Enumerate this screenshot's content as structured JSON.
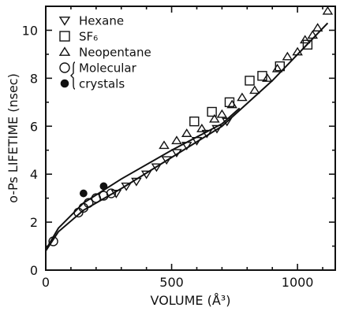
{
  "chart_data": {
    "type": "scatter",
    "xlabel": "VOLUME (Å³)",
    "ylabel": "o-Ps LIFETIME (nsec)",
    "xlim": [
      0,
      1150
    ],
    "ylim": [
      0,
      11
    ],
    "xticks": [
      0,
      500,
      1000
    ],
    "yticks": [
      0,
      2,
      4,
      6,
      8,
      10
    ],
    "legend_position": "top-left",
    "series": [
      {
        "name": "Hexane",
        "marker": "triangle-down",
        "filled": false,
        "points": [
          [
            280,
            3.2
          ],
          [
            320,
            3.5
          ],
          [
            360,
            3.7
          ],
          [
            400,
            4.0
          ],
          [
            440,
            4.3
          ],
          [
            480,
            4.6
          ],
          [
            520,
            4.9
          ],
          [
            560,
            5.2
          ],
          [
            600,
            5.4
          ],
          [
            640,
            5.7
          ],
          [
            680,
            5.9
          ],
          [
            720,
            6.2
          ]
        ]
      },
      {
        "name": "SF₆",
        "marker": "square",
        "filled": false,
        "points": [
          [
            590,
            6.2
          ],
          [
            660,
            6.6
          ],
          [
            730,
            7.0
          ],
          [
            810,
            7.9
          ],
          [
            860,
            8.1
          ],
          [
            930,
            8.5
          ],
          [
            1040,
            9.4
          ]
        ]
      },
      {
        "name": "Neopentane",
        "marker": "triangle-up",
        "filled": false,
        "points": [
          [
            470,
            5.2
          ],
          [
            520,
            5.4
          ],
          [
            560,
            5.7
          ],
          [
            620,
            5.9
          ],
          [
            670,
            6.3
          ],
          [
            700,
            6.5
          ],
          [
            740,
            6.9
          ],
          [
            780,
            7.2
          ],
          [
            830,
            7.5
          ],
          [
            880,
            8.0
          ],
          [
            920,
            8.4
          ],
          [
            960,
            8.9
          ],
          [
            1000,
            9.1
          ],
          [
            1030,
            9.6
          ],
          [
            1060,
            9.8
          ],
          [
            1080,
            10.1
          ],
          [
            1120,
            10.8
          ]
        ]
      },
      {
        "name": "Molecular crystals",
        "marker": "circle",
        "filled": false,
        "points": [
          [
            30,
            1.2
          ],
          [
            130,
            2.4
          ],
          [
            150,
            2.6
          ],
          [
            170,
            2.8
          ],
          [
            200,
            3.0
          ],
          [
            230,
            3.1
          ],
          [
            260,
            3.2
          ]
        ]
      },
      {
        "name": "Molecular crystals",
        "marker": "circle",
        "filled": true,
        "points": [
          [
            150,
            3.2
          ],
          [
            230,
            3.5
          ]
        ]
      }
    ],
    "fit_lines": [
      {
        "points": [
          [
            0,
            0.8
          ],
          [
            50,
            1.6
          ],
          [
            150,
            2.5
          ],
          [
            300,
            3.4
          ],
          [
            500,
            4.7
          ],
          [
            700,
            6.0
          ],
          [
            900,
            7.9
          ],
          [
            1120,
            10.3
          ]
        ]
      },
      {
        "points": [
          [
            0,
            0.85
          ],
          [
            50,
            1.75
          ],
          [
            150,
            2.8
          ],
          [
            300,
            3.8
          ],
          [
            500,
            5.0
          ],
          [
            700,
            6.1
          ],
          [
            770,
            6.75
          ]
        ]
      }
    ],
    "legend": {
      "items": [
        {
          "marker": "triangle-down",
          "label": "Hexane"
        },
        {
          "marker": "square",
          "label": "SF₆"
        },
        {
          "marker": "triangle-up",
          "label": "Neopentane"
        },
        {
          "marker": "circle",
          "label": "Molecular"
        },
        {
          "marker": "circle-filled",
          "label": "crystals"
        }
      ]
    }
  }
}
